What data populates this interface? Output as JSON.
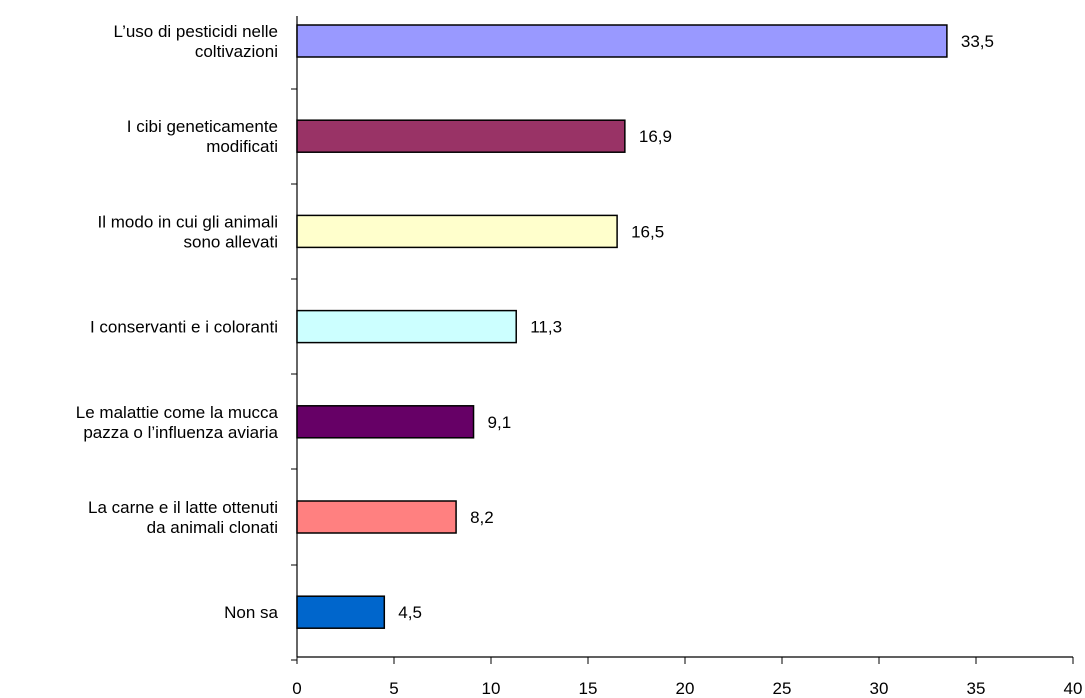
{
  "chart_data": {
    "type": "bar",
    "orientation": "horizontal",
    "categories": [
      [
        "L’uso di pesticidi nelle",
        "coltivazioni"
      ],
      [
        "I cibi geneticamente",
        "modificati"
      ],
      [
        "Il modo in cui gli animali",
        "sono allevati"
      ],
      [
        "I conservanti e i coloranti"
      ],
      [
        "Le malattie come la mucca",
        "pazza o l’influenza aviaria"
      ],
      [
        "La carne e il latte ottenuti",
        "da animali clonati"
      ],
      [
        "Non sa"
      ]
    ],
    "values": [
      33.5,
      16.9,
      16.5,
      11.3,
      9.1,
      8.2,
      4.5
    ],
    "value_labels": [
      "33,5",
      "16,9",
      "16,5",
      "11,3",
      "9,1",
      "8,2",
      "4,5"
    ],
    "colors": [
      "#9999ff",
      "#993366",
      "#ffffcc",
      "#ccffff",
      "#660066",
      "#ff8080",
      "#0066cc"
    ],
    "xlim": [
      0,
      40
    ],
    "xticks": [
      "0",
      "5",
      "10",
      "15",
      "20",
      "25",
      "30",
      "35",
      "40"
    ],
    "grid": false,
    "legend": "none",
    "title": "",
    "xlabel": "",
    "ylabel": ""
  }
}
